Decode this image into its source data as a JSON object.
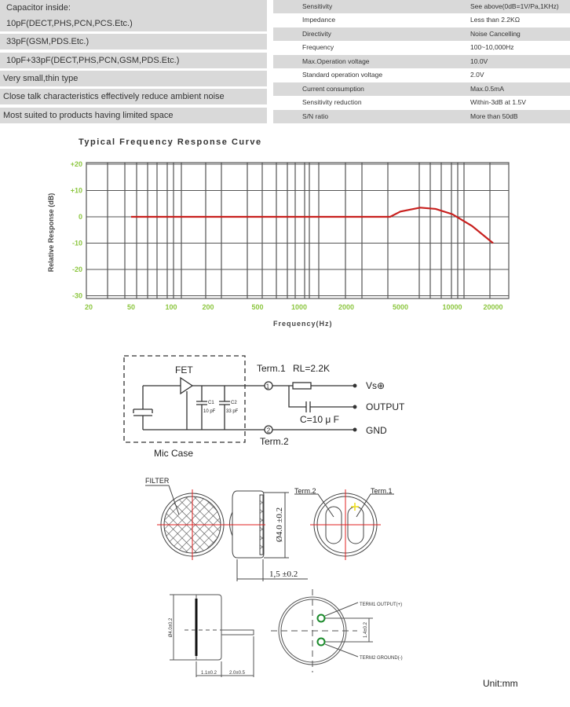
{
  "features": [
    "Capacitor inside:",
    "10pF(DECT,PHS,PCN,PCS.Etc.)",
    "33pF(GSM,PDS.Etc.)",
    "10pF+33pF(DECT,PHS,PCN,GSM,PDS.Etc.)",
    "Very small,thin type",
    "Close talk characteristics effectively reduce ambient noise",
    "Most suited to products having limited space"
  ],
  "specs": [
    {
      "key": "Sensitivity",
      "value": "See above(0dB=1V/Pa,1KHz)"
    },
    {
      "key": "Impedance",
      "value": "Less than 2.2KΩ"
    },
    {
      "key": "Directivity",
      "value": "Noise Cancelling"
    },
    {
      "key": "Frequency",
      "value": "100~10,000Hz"
    },
    {
      "key": "Max.Operation voltage",
      "value": "10.0V"
    },
    {
      "key": "Standard  operation  voltage",
      "value": "2.0V"
    },
    {
      "key": "Current  consumption",
      "value": "Max.0.5mA"
    },
    {
      "key": "Sensitivity reduction",
      "value": "Within-3dB at 1.5V"
    },
    {
      "key": "S/N ratio",
      "value": "More than 50dB"
    }
  ],
  "chart_data": {
    "type": "line",
    "title": "Typical Frequency Response Curve",
    "xlabel": "Frequency(Hz)",
    "ylabel": "Relative Response (dB)",
    "x_scale": "log",
    "x_ticks": [
      20,
      50,
      100,
      200,
      500,
      1000,
      2000,
      5000,
      10000,
      20000
    ],
    "y_ticks": [
      "+20",
      "+10",
      "0",
      "-10",
      "-20",
      "-30"
    ],
    "ylim": [
      -30,
      20
    ],
    "grid": true,
    "line_color": "#c8201e",
    "x": [
      50,
      100,
      500,
      1000,
      2000,
      4200,
      5000,
      6500,
      8000,
      10000,
      14000,
      20000
    ],
    "y": [
      0,
      0,
      0,
      0,
      0,
      0,
      2,
      3.5,
      3,
      1,
      -3.5,
      -10
    ]
  },
  "circuit": {
    "fet": "FET",
    "term1": "Term.1",
    "term2": "Term.2",
    "rl": "RL=2.2K",
    "vs": "Vs⊕",
    "output": "OUTPUT",
    "gnd": "GND",
    "cap": "C=10 μ F",
    "c1": "C1",
    "c1v": "10 pF",
    "c2": "C2",
    "c2v": "33 pF",
    "mic_case": "Mic Case",
    "pin1": "1",
    "pin2": "2"
  },
  "drawing": {
    "filter": "FILTER",
    "dia": "Ø4.0 ±0.2",
    "thick": "1,5 ±0.2",
    "term2": "Term.2",
    "term1": "Term.1",
    "dia2": "Ø4.0±0.2",
    "d11": "1.1±0.2",
    "d20": "2.0±0.5",
    "d14": "1.4±0.2",
    "term1_out": "TERM1 OUTPUT(+)",
    "term2_gnd": "TERM2 GROUND(-)",
    "unit": "Unit:mm"
  }
}
